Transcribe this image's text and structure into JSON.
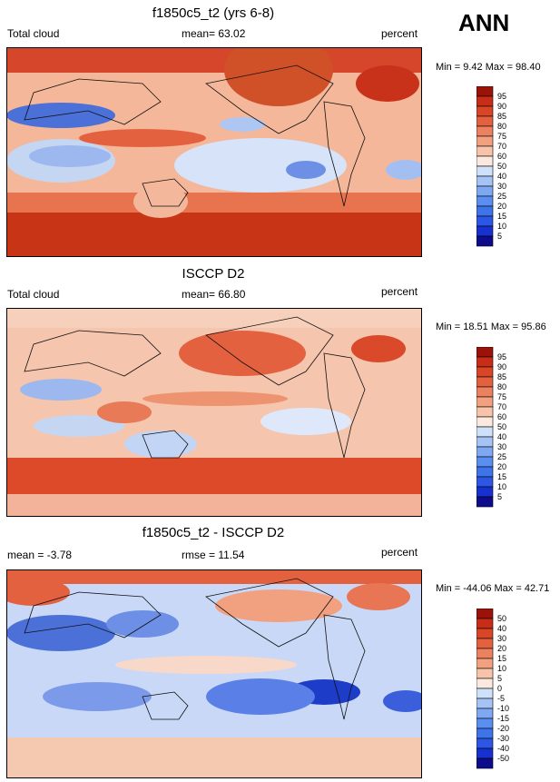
{
  "season_label": "ANN",
  "colors": {
    "abs_scale": [
      "#0e0b8c",
      "#1730d0",
      "#2b56e6",
      "#3e74ea",
      "#5a8ef0",
      "#7ea8f2",
      "#a6c3f5",
      "#cfe0fa",
      "#fbe8de",
      "#f7c4aa",
      "#f2a180",
      "#ec8160",
      "#e4613f",
      "#d84627",
      "#c72d17",
      "#9a1208"
    ],
    "diff_scale": [
      "#0e0b8c",
      "#1730d0",
      "#2b56e6",
      "#3e74ea",
      "#5a8ef0",
      "#7ea8f2",
      "#a6c3f5",
      "#cfe0fa",
      "#fbe8de",
      "#f7c4aa",
      "#f2a180",
      "#ec8160",
      "#e4613f",
      "#d84627",
      "#c72d17",
      "#9a1208"
    ]
  },
  "panels": [
    {
      "title": "f1850c5_t2 (yrs 6-8)",
      "left_label": "Total cloud",
      "center_label": "mean=  63.02",
      "units": "percent",
      "minmax": "Min =   9.42 Max =  98.40",
      "colorbar_labels": [
        "95",
        "90",
        "85",
        "80",
        "75",
        "70",
        "60",
        "50",
        "40",
        "30",
        "25",
        "20",
        "15",
        "10",
        "5"
      ]
    },
    {
      "title": "ISCCP D2",
      "left_label": "Total cloud",
      "center_label": "mean=  66.80",
      "units": "percent",
      "minmax": "Min =  18.51 Max =  95.86",
      "colorbar_labels": [
        "95",
        "90",
        "85",
        "80",
        "75",
        "70",
        "60",
        "50",
        "40",
        "30",
        "25",
        "20",
        "15",
        "10",
        "5"
      ]
    },
    {
      "title": "f1850c5_t2 - ISCCP D2",
      "left_label": "mean =  -3.78",
      "center_label": "rmse =  11.54",
      "units": "percent",
      "minmax": "Min = -44.06 Max =  42.71",
      "colorbar_labels": [
        "50",
        "40",
        "30",
        "20",
        "15",
        "10",
        "5",
        "0",
        "-5",
        "-10",
        "-15",
        "-20",
        "-30",
        "-40",
        "-50"
      ]
    }
  ],
  "chart_data": [
    {
      "type": "heatmap",
      "title": "f1850c5_t2 (yrs 6-8)",
      "variable": "Total cloud",
      "units": "percent",
      "mean": 63.02,
      "min": 9.42,
      "max": 98.4,
      "levels": [
        5,
        10,
        15,
        20,
        25,
        30,
        40,
        50,
        60,
        70,
        75,
        80,
        85,
        90,
        95
      ]
    },
    {
      "type": "heatmap",
      "title": "ISCCP D2",
      "variable": "Total cloud",
      "units": "percent",
      "mean": 66.8,
      "min": 18.51,
      "max": 95.86,
      "levels": [
        5,
        10,
        15,
        20,
        25,
        30,
        40,
        50,
        60,
        70,
        75,
        80,
        85,
        90,
        95
      ]
    },
    {
      "type": "heatmap",
      "title": "f1850c5_t2 - ISCCP D2",
      "units": "percent",
      "mean": -3.78,
      "rmse": 11.54,
      "min": -44.06,
      "max": 42.71,
      "levels": [
        -50,
        -40,
        -30,
        -20,
        -15,
        -10,
        -5,
        0,
        5,
        10,
        15,
        20,
        30,
        40,
        50
      ]
    }
  ]
}
